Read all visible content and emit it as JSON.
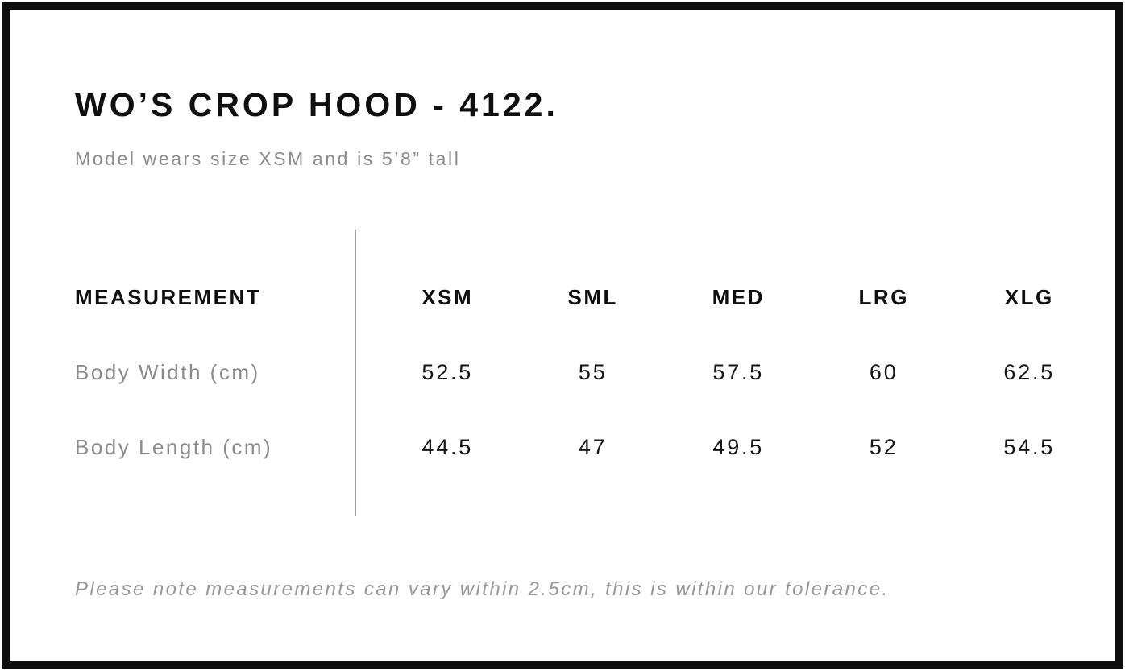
{
  "page": {
    "title": "WO’S CROP HOOD - 4122.",
    "subtitle": "Model wears size XSM and is 5’8” tall",
    "footnote": "Please note measurements can vary within 2.5cm, this is within our tolerance."
  },
  "chart_data": {
    "type": "table",
    "title": "WO’S CROP HOOD - 4122.",
    "columns": [
      "MEASUREMENT",
      "XSM",
      "SML",
      "MED",
      "LRG",
      "XLG"
    ],
    "rows": [
      {
        "label": "Body Width (cm)",
        "values": [
          52.5,
          55,
          57.5,
          60,
          62.5
        ]
      },
      {
        "label": "Body Length (cm)",
        "values": [
          44.5,
          47,
          49.5,
          52,
          54.5
        ]
      }
    ]
  },
  "colors": {
    "border": "#0e0e0e",
    "text": "#0f0f0f",
    "muted_text": "#8b8b8b",
    "footnote_text": "#979797",
    "divider": "#a4a4a4",
    "background": "#ffffff"
  }
}
